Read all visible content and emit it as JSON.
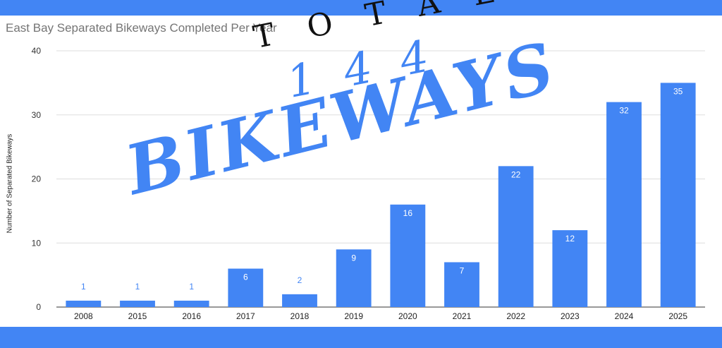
{
  "chart_data": {
    "type": "bar",
    "title": "East Bay Separated Bikeways Completed Per Year",
    "xlabel": "",
    "ylabel": "Number of Separated Bikeways",
    "ylim": [
      0,
      40
    ],
    "yticks": [
      0,
      10,
      20,
      30,
      40
    ],
    "grid": true,
    "categories": [
      "2008",
      "2015",
      "2016",
      "2017",
      "2018",
      "2019",
      "2020",
      "2021",
      "2022",
      "2023",
      "2024",
      "2025"
    ],
    "values": [
      1,
      1,
      1,
      6,
      2,
      9,
      16,
      7,
      22,
      12,
      32,
      35
    ],
    "bar_color": "#4285f4"
  },
  "overlay": {
    "total_label": "TOTAL",
    "total_count": "144",
    "word": "BIKEWAYS"
  },
  "colors": {
    "accent": "#4285f4",
    "title": "#757575",
    "gridline": "#dddddd"
  }
}
